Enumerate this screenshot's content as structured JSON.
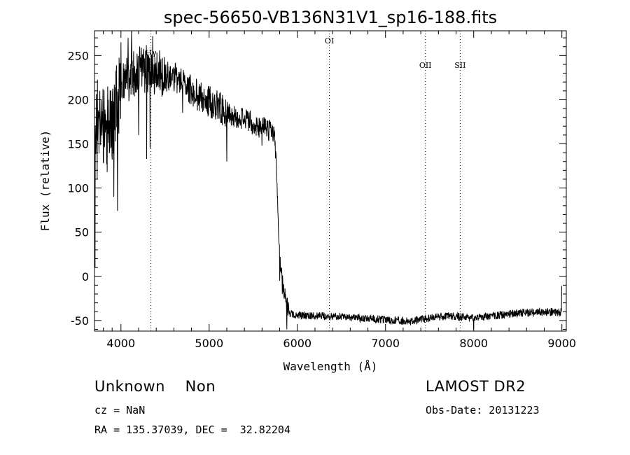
{
  "chart_data": {
    "type": "line",
    "title": "spec-56650-VB136N31V1_sp16-188.fits",
    "xlabel": "Wavelength (Å)",
    "ylabel": "Flux (relative)",
    "xlim": [
      3700,
      9050
    ],
    "ylim": [
      -62,
      278
    ],
    "xticks": [
      4000,
      5000,
      6000,
      7000,
      8000,
      9000
    ],
    "yticks": [
      -50,
      0,
      50,
      100,
      150,
      200,
      250
    ],
    "grid": false,
    "line_color": "#000000",
    "lines": [
      {
        "label": "Hγ",
        "x": 4340
      },
      {
        "label": "OI",
        "x": 6364
      },
      {
        "label": "OII",
        "x": 7452
      },
      {
        "label": "SII",
        "x": 7846
      }
    ],
    "anchors": [
      {
        "x": 3700,
        "y": 150
      },
      {
        "x": 3720,
        "y": 190
      },
      {
        "x": 3750,
        "y": 175
      },
      {
        "x": 3800,
        "y": 170
      },
      {
        "x": 3850,
        "y": 160
      },
      {
        "x": 3900,
        "y": 175
      },
      {
        "x": 3950,
        "y": 195
      },
      {
        "x": 4000,
        "y": 215
      },
      {
        "x": 4050,
        "y": 222
      },
      {
        "x": 4100,
        "y": 226
      },
      {
        "x": 4200,
        "y": 233
      },
      {
        "x": 4300,
        "y": 236
      },
      {
        "x": 4400,
        "y": 232
      },
      {
        "x": 4500,
        "y": 227
      },
      {
        "x": 4600,
        "y": 225
      },
      {
        "x": 4700,
        "y": 218
      },
      {
        "x": 4800,
        "y": 210
      },
      {
        "x": 4900,
        "y": 203
      },
      {
        "x": 5000,
        "y": 198
      },
      {
        "x": 5100,
        "y": 193
      },
      {
        "x": 5200,
        "y": 185
      },
      {
        "x": 5300,
        "y": 181
      },
      {
        "x": 5400,
        "y": 178
      },
      {
        "x": 5500,
        "y": 173
      },
      {
        "x": 5600,
        "y": 168
      },
      {
        "x": 5700,
        "y": 165
      },
      {
        "x": 5740,
        "y": 160
      },
      {
        "x": 5760,
        "y": 130
      },
      {
        "x": 5780,
        "y": 70
      },
      {
        "x": 5800,
        "y": 20
      },
      {
        "x": 5830,
        "y": -5
      },
      {
        "x": 5870,
        "y": -30
      },
      {
        "x": 5920,
        "y": -42
      },
      {
        "x": 6000,
        "y": -44
      },
      {
        "x": 6500,
        "y": -46
      },
      {
        "x": 7000,
        "y": -49
      },
      {
        "x": 7300,
        "y": -51
      },
      {
        "x": 7500,
        "y": -47
      },
      {
        "x": 7700,
        "y": -45
      },
      {
        "x": 8000,
        "y": -47
      },
      {
        "x": 8300,
        "y": -44
      },
      {
        "x": 8600,
        "y": -41
      },
      {
        "x": 8900,
        "y": -40
      },
      {
        "x": 8980,
        "y": -41
      },
      {
        "x": 8995,
        "y": -36
      },
      {
        "x": 9000,
        "y": 0
      }
    ],
    "spikes": [
      {
        "x": 3705,
        "y": 10
      },
      {
        "x": 3730,
        "y": 110
      },
      {
        "x": 3760,
        "y": 210
      },
      {
        "x": 3800,
        "y": 130
      },
      {
        "x": 3850,
        "y": 215
      },
      {
        "x": 3920,
        "y": 90
      },
      {
        "x": 3960,
        "y": 74
      },
      {
        "x": 4000,
        "y": 265
      },
      {
        "x": 4080,
        "y": 270
      },
      {
        "x": 4120,
        "y": 280
      },
      {
        "x": 4200,
        "y": 160
      },
      {
        "x": 4290,
        "y": 133
      },
      {
        "x": 4330,
        "y": 145
      },
      {
        "x": 4360,
        "y": 272
      },
      {
        "x": 4700,
        "y": 185
      },
      {
        "x": 5200,
        "y": 130
      },
      {
        "x": 5600,
        "y": 148
      },
      {
        "x": 5800,
        "y": -5
      },
      {
        "x": 5830,
        "y": -20
      },
      {
        "x": 5880,
        "y": -60
      },
      {
        "x": 8000,
        "y": -60
      }
    ]
  },
  "info": {
    "classification": "Unknown    Non",
    "cz": "cz = NaN",
    "coords": "RA = 135.37039, DEC =  32.82204",
    "survey": "LAMOST DR2",
    "obs_date": "Obs-Date: 20131223"
  }
}
